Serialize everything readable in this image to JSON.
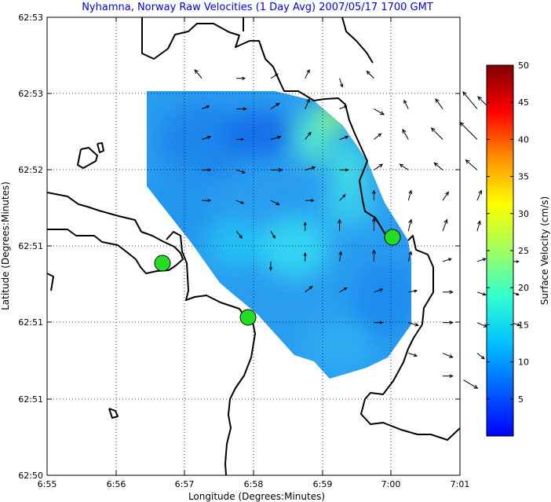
{
  "chart_data": {
    "type": "vector-field",
    "title": "Nyhamna, Norway Raw Velocities (1 Day Avg) 2007/05/17 1700 GMT",
    "xlabel": "Longitude (Degrees:Minutes)",
    "ylabel": "Latitude (Degrees:Minutes)",
    "colorbar_label": "Surface Velocity (cm/s)",
    "x_ticks": [
      "6:55",
      "6:56",
      "6:57",
      "6:58",
      "6:59",
      "7:00",
      "7:01"
    ],
    "y_ticks": [
      "62:50",
      "62:51",
      "62:51",
      "62:51",
      "62:52",
      "62:53",
      "62:53"
    ],
    "colorbar_ticks": [
      "5",
      "10",
      "15",
      "20",
      "25",
      "30",
      "35",
      "40",
      "45",
      "50"
    ],
    "colorbar_range": [
      0,
      50
    ],
    "grid": true,
    "grid_style": "dotted",
    "sites": [
      {
        "x": 6.95,
        "y": 3.0
      },
      {
        "x": 2.8,
        "y": 2.7
      },
      {
        "x": 4.95,
        "y": 2.0
      }
    ],
    "vectors": [
      {
        "x": 2.25,
        "y": 5.2,
        "s": 3,
        "u": -0.05,
        "v": 0.06
      },
      {
        "x": 2.75,
        "y": 5.2,
        "s": 3,
        "u": 0.06,
        "v": 0.0
      },
      {
        "x": 3.25,
        "y": 5.2,
        "s": 3,
        "u": 0.05,
        "v": 0.03
      },
      {
        "x": 3.75,
        "y": 5.2,
        "s": 3,
        "u": 0.03,
        "v": 0.06
      },
      {
        "x": 4.25,
        "y": 5.2,
        "s": 3,
        "u": 0.02,
        "v": -0.06
      },
      {
        "x": 4.75,
        "y": 5.2,
        "s": 3,
        "u": -0.05,
        "v": 0.05
      },
      {
        "x": 2.25,
        "y": 4.8,
        "s": 5,
        "u": 0.05,
        "v": 0.02
      },
      {
        "x": 2.75,
        "y": 4.8,
        "s": 4,
        "u": 0.07,
        "v": 0.0
      },
      {
        "x": 3.25,
        "y": 4.8,
        "s": 5,
        "u": 0.06,
        "v": 0.04
      },
      {
        "x": 3.75,
        "y": 4.8,
        "s": 4,
        "u": 0.03,
        "v": 0.07
      },
      {
        "x": 4.25,
        "y": 4.8,
        "s": 5,
        "u": 0.05,
        "v": 0.02
      },
      {
        "x": 4.75,
        "y": 4.8,
        "s": 4,
        "u": 0.07,
        "v": -0.04
      },
      {
        "x": 5.25,
        "y": 4.8,
        "s": 6,
        "u": -0.03,
        "v": 0.06
      },
      {
        "x": 5.75,
        "y": 4.8,
        "s": 7,
        "u": -0.05,
        "v": 0.07
      },
      {
        "x": 6.25,
        "y": 4.8,
        "s": 11,
        "u": -0.1,
        "v": 0.12
      },
      {
        "x": 6.55,
        "y": 4.7,
        "s": 12,
        "u": -0.14,
        "v": 0.14
      },
      {
        "x": 2.25,
        "y": 4.4,
        "s": 5,
        "u": 0.06,
        "v": 0.02
      },
      {
        "x": 2.75,
        "y": 4.4,
        "s": 4,
        "u": 0.05,
        "v": 0.0
      },
      {
        "x": 3.25,
        "y": 4.4,
        "s": 4,
        "u": 0.07,
        "v": 0.02
      },
      {
        "x": 3.75,
        "y": 4.4,
        "s": 4,
        "u": 0.04,
        "v": 0.05
      },
      {
        "x": 4.25,
        "y": 4.4,
        "s": 3,
        "u": 0.06,
        "v": 0.02
      },
      {
        "x": 4.75,
        "y": 4.4,
        "s": 4,
        "u": 0.05,
        "v": 0.04
      },
      {
        "x": 5.25,
        "y": 4.4,
        "s": 5,
        "u": -0.04,
        "v": 0.07
      },
      {
        "x": 5.75,
        "y": 4.4,
        "s": 7,
        "u": -0.08,
        "v": 0.08
      },
      {
        "x": 6.25,
        "y": 4.4,
        "s": 11,
        "u": -0.12,
        "v": 0.12
      },
      {
        "x": 2.25,
        "y": 4.0,
        "s": 5,
        "u": 0.06,
        "v": 0.0
      },
      {
        "x": 2.75,
        "y": 4.0,
        "s": 4,
        "u": 0.06,
        "v": -0.02
      },
      {
        "x": 3.25,
        "y": 4.0,
        "s": 4,
        "u": 0.08,
        "v": 0.0
      },
      {
        "x": 3.75,
        "y": 4.0,
        "s": 4,
        "u": 0.07,
        "v": 0.02
      },
      {
        "x": 4.25,
        "y": 4.0,
        "s": 4,
        "u": 0.06,
        "v": 0.0
      },
      {
        "x": 4.75,
        "y": 4.0,
        "s": 5,
        "u": 0.06,
        "v": 0.04
      },
      {
        "x": 5.25,
        "y": 4.0,
        "s": 7,
        "u": -0.06,
        "v": 0.04
      },
      {
        "x": 5.75,
        "y": 4.0,
        "s": 8,
        "u": -0.06,
        "v": 0.05
      },
      {
        "x": 6.25,
        "y": 4.0,
        "s": 10,
        "u": -0.08,
        "v": 0.07
      },
      {
        "x": 2.25,
        "y": 3.6,
        "s": 5,
        "u": 0.06,
        "v": 0.0
      },
      {
        "x": 2.75,
        "y": 3.6,
        "s": 5,
        "u": 0.05,
        "v": -0.02
      },
      {
        "x": 3.25,
        "y": 3.6,
        "s": 5,
        "u": 0.06,
        "v": -0.03
      },
      {
        "x": 3.75,
        "y": 3.6,
        "s": 5,
        "u": 0.06,
        "v": 0.0
      },
      {
        "x": 4.25,
        "y": 3.6,
        "s": 6,
        "u": 0.04,
        "v": 0.04
      },
      {
        "x": 4.75,
        "y": 3.6,
        "s": 7,
        "u": 0.0,
        "v": 0.07
      },
      {
        "x": 5.25,
        "y": 3.6,
        "s": 7,
        "u": 0.02,
        "v": 0.07
      },
      {
        "x": 5.75,
        "y": 3.6,
        "s": 8,
        "u": 0.04,
        "v": 0.06
      },
      {
        "x": 6.25,
        "y": 3.6,
        "s": 8,
        "u": 0.03,
        "v": 0.07
      },
      {
        "x": 6.65,
        "y": 3.6,
        "s": 8,
        "u": 0.02,
        "v": 0.06
      },
      {
        "x": 2.75,
        "y": 3.2,
        "s": 6,
        "u": 0.04,
        "v": -0.05
      },
      {
        "x": 3.25,
        "y": 3.2,
        "s": 5,
        "u": 0.03,
        "v": -0.05
      },
      {
        "x": 3.75,
        "y": 3.2,
        "s": 6,
        "u": 0.0,
        "v": 0.06
      },
      {
        "x": 4.25,
        "y": 3.2,
        "s": 8,
        "u": 0.0,
        "v": 0.08
      },
      {
        "x": 4.75,
        "y": 3.2,
        "s": 8,
        "u": 0.0,
        "v": 0.09
      },
      {
        "x": 5.25,
        "y": 3.2,
        "s": 7,
        "u": 0.02,
        "v": 0.08
      },
      {
        "x": 5.75,
        "y": 3.2,
        "s": 7,
        "u": 0.03,
        "v": 0.08
      },
      {
        "x": 6.25,
        "y": 3.2,
        "s": 7,
        "u": 0.02,
        "v": 0.07
      },
      {
        "x": 3.25,
        "y": 2.8,
        "s": 6,
        "u": 0.0,
        "v": -0.06
      },
      {
        "x": 3.75,
        "y": 2.8,
        "s": 7,
        "u": 0.0,
        "v": 0.06
      },
      {
        "x": 4.25,
        "y": 2.8,
        "s": 8,
        "u": 0.01,
        "v": 0.07
      },
      {
        "x": 4.75,
        "y": 2.8,
        "s": 9,
        "u": 0.0,
        "v": 0.08
      },
      {
        "x": 5.25,
        "y": 2.8,
        "s": 8,
        "u": 0.02,
        "v": 0.07
      },
      {
        "x": 5.75,
        "y": 2.8,
        "s": 6,
        "u": 0.06,
        "v": 0.02
      },
      {
        "x": 6.25,
        "y": 2.8,
        "s": 6,
        "u": 0.06,
        "v": 0.02
      },
      {
        "x": 6.75,
        "y": 2.8,
        "s": 5,
        "u": 0.05,
        "v": 0.0
      },
      {
        "x": 3.75,
        "y": 2.4,
        "s": 6,
        "u": 0.05,
        "v": 0.04
      },
      {
        "x": 4.25,
        "y": 2.4,
        "s": 6,
        "u": 0.05,
        "v": 0.03
      },
      {
        "x": 4.75,
        "y": 2.4,
        "s": 5,
        "u": 0.06,
        "v": 0.02
      },
      {
        "x": 5.25,
        "y": 2.4,
        "s": 6,
        "u": 0.06,
        "v": 0.01
      },
      {
        "x": 5.75,
        "y": 2.4,
        "s": 6,
        "u": 0.07,
        "v": 0.0
      },
      {
        "x": 6.25,
        "y": 2.4,
        "s": 6,
        "u": 0.06,
        "v": -0.02
      },
      {
        "x": 6.75,
        "y": 2.4,
        "s": 5,
        "u": 0.05,
        "v": -0.02
      },
      {
        "x": 4.75,
        "y": 2.0,
        "s": 5,
        "u": 0.06,
        "v": 0.0
      },
      {
        "x": 5.25,
        "y": 2.0,
        "s": 6,
        "u": 0.07,
        "v": -0.02
      },
      {
        "x": 5.75,
        "y": 2.0,
        "s": 6,
        "u": 0.07,
        "v": 0.0
      },
      {
        "x": 6.25,
        "y": 2.0,
        "s": 6,
        "u": 0.07,
        "v": -0.03
      },
      {
        "x": 6.75,
        "y": 2.0,
        "s": 5,
        "u": 0.06,
        "v": -0.02
      },
      {
        "x": 5.25,
        "y": 1.6,
        "s": 6,
        "u": 0.06,
        "v": -0.02
      },
      {
        "x": 5.75,
        "y": 1.6,
        "s": 6,
        "u": 0.07,
        "v": -0.03
      },
      {
        "x": 6.25,
        "y": 1.6,
        "s": 6,
        "u": 0.05,
        "v": -0.04
      },
      {
        "x": 5.75,
        "y": 1.3,
        "s": 6,
        "u": 0.07,
        "v": 0.0
      },
      {
        "x": 6.05,
        "y": 1.25,
        "s": 7,
        "u": 0.1,
        "v": -0.06
      }
    ]
  }
}
